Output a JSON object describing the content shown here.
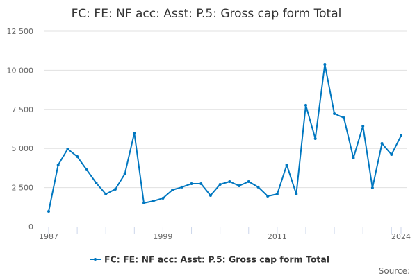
{
  "chart_data": {
    "type": "line",
    "title": "FC: FE: NF acc: Asst: P.5: Gross cap form Total",
    "xlabel": "",
    "ylabel": "",
    "x": [
      1987,
      1988,
      1989,
      1990,
      1991,
      1992,
      1993,
      1994,
      1995,
      1996,
      1997,
      1998,
      1999,
      2000,
      2001,
      2002,
      2003,
      2004,
      2005,
      2006,
      2007,
      2008,
      2009,
      2010,
      2011,
      2012,
      2013,
      2014,
      2015,
      2016,
      2017,
      2018,
      2019,
      2020,
      2021,
      2022,
      2023,
      2024
    ],
    "series": [
      {
        "name": "FC: FE: NF acc: Asst: P.5: Gross cap form Total",
        "color": "#0077c0",
        "values": [
          975,
          3945,
          4965,
          4480,
          3635,
          2790,
          2085,
          2395,
          3370,
          5985,
          1510,
          1640,
          1820,
          2350,
          2530,
          2750,
          2750,
          1995,
          2705,
          2880,
          2615,
          2880,
          2530,
          1950,
          2085,
          3945,
          2085,
          7760,
          5630,
          10375,
          7225,
          6960,
          4390,
          6430,
          2480,
          5320,
          4610,
          5810
        ]
      }
    ],
    "ylim": [
      0,
      12500
    ],
    "yticks": [
      0,
      2500,
      5000,
      7500,
      10000,
      12500
    ],
    "ytick_labels": [
      "0",
      "2 500",
      "5 000",
      "7 500",
      "10 000",
      "12 500"
    ],
    "xtick_labels": [
      "1987",
      "1999",
      "2011",
      "2024"
    ],
    "grid": true,
    "legend": "bottom-center"
  },
  "source_label": "Source:"
}
